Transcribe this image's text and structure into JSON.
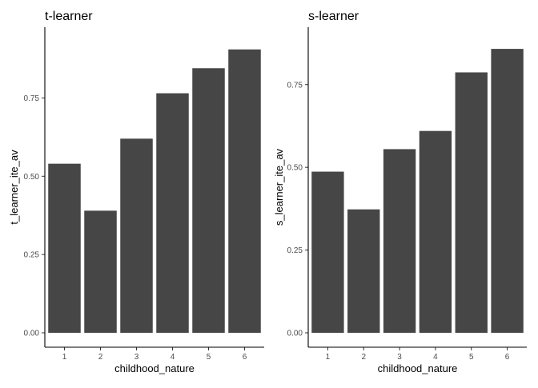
{
  "bar_color": "#464646",
  "chart_data": [
    {
      "type": "bar",
      "title": "t-learner",
      "xlabel": "childhood_nature",
      "ylabel": "t_learner_ite_av",
      "categories": [
        "1",
        "2",
        "3",
        "4",
        "5",
        "6"
      ],
      "values": [
        0.54,
        0.39,
        0.62,
        0.765,
        0.845,
        0.905
      ],
      "ylim": [
        0,
        0.93
      ],
      "yticks": [
        0,
        0.25,
        0.5,
        0.75
      ],
      "ytick_labels": [
        "0.00",
        "0.25",
        "0.50",
        "0.75"
      ],
      "grid": false,
      "legend": "none"
    },
    {
      "type": "bar",
      "title": "s-learner",
      "xlabel": "childhood_nature",
      "ylabel": "s_learner_ite_av",
      "categories": [
        "1",
        "2",
        "3",
        "4",
        "5",
        "6"
      ],
      "values": [
        0.487,
        0.373,
        0.555,
        0.61,
        0.787,
        0.858
      ],
      "ylim": [
        0,
        0.88
      ],
      "yticks": [
        0,
        0.25,
        0.5,
        0.75
      ],
      "ytick_labels": [
        "0.00",
        "0.25",
        "0.50",
        "0.75"
      ],
      "grid": false,
      "legend": "none"
    }
  ]
}
